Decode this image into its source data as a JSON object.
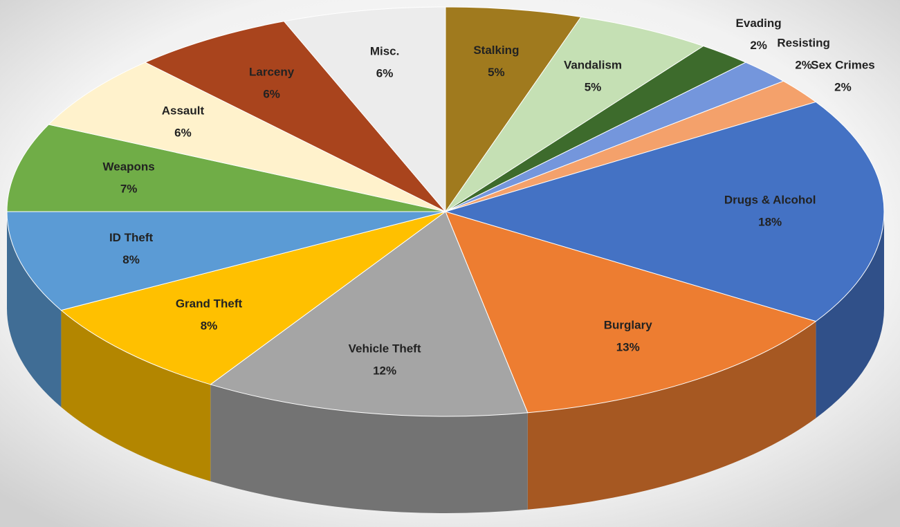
{
  "chart_data": {
    "type": "pie",
    "categories": [
      "Stalking",
      "Vandalism",
      "Evading",
      "Resisting",
      "Sex Crimes",
      "Drugs & Alcohol",
      "Burglary",
      "Vehicle Theft",
      "Grand Theft",
      "ID Theft",
      "Weapons",
      "Assault",
      "Larceny",
      "Misc."
    ],
    "values": [
      5,
      5,
      2,
      2,
      2,
      18,
      13,
      12,
      8,
      8,
      7,
      6,
      6,
      6
    ],
    "value_labels": [
      "5%",
      "5%",
      "2%",
      "2%",
      "2%",
      "18%",
      "13%",
      "12%",
      "8%",
      "8%",
      "7%",
      "6%",
      "6%",
      "6%"
    ],
    "colors": [
      "#a07a1e",
      "#c5e0b4",
      "#3d6b2c",
      "#7496dc",
      "#f4a16b",
      "#4472c4",
      "#ed7d31",
      "#a5a5a5",
      "#ffc000",
      "#5b9bd5",
      "#70ad47",
      "#fff2cc",
      "#a9441d",
      "#ececec"
    ]
  }
}
